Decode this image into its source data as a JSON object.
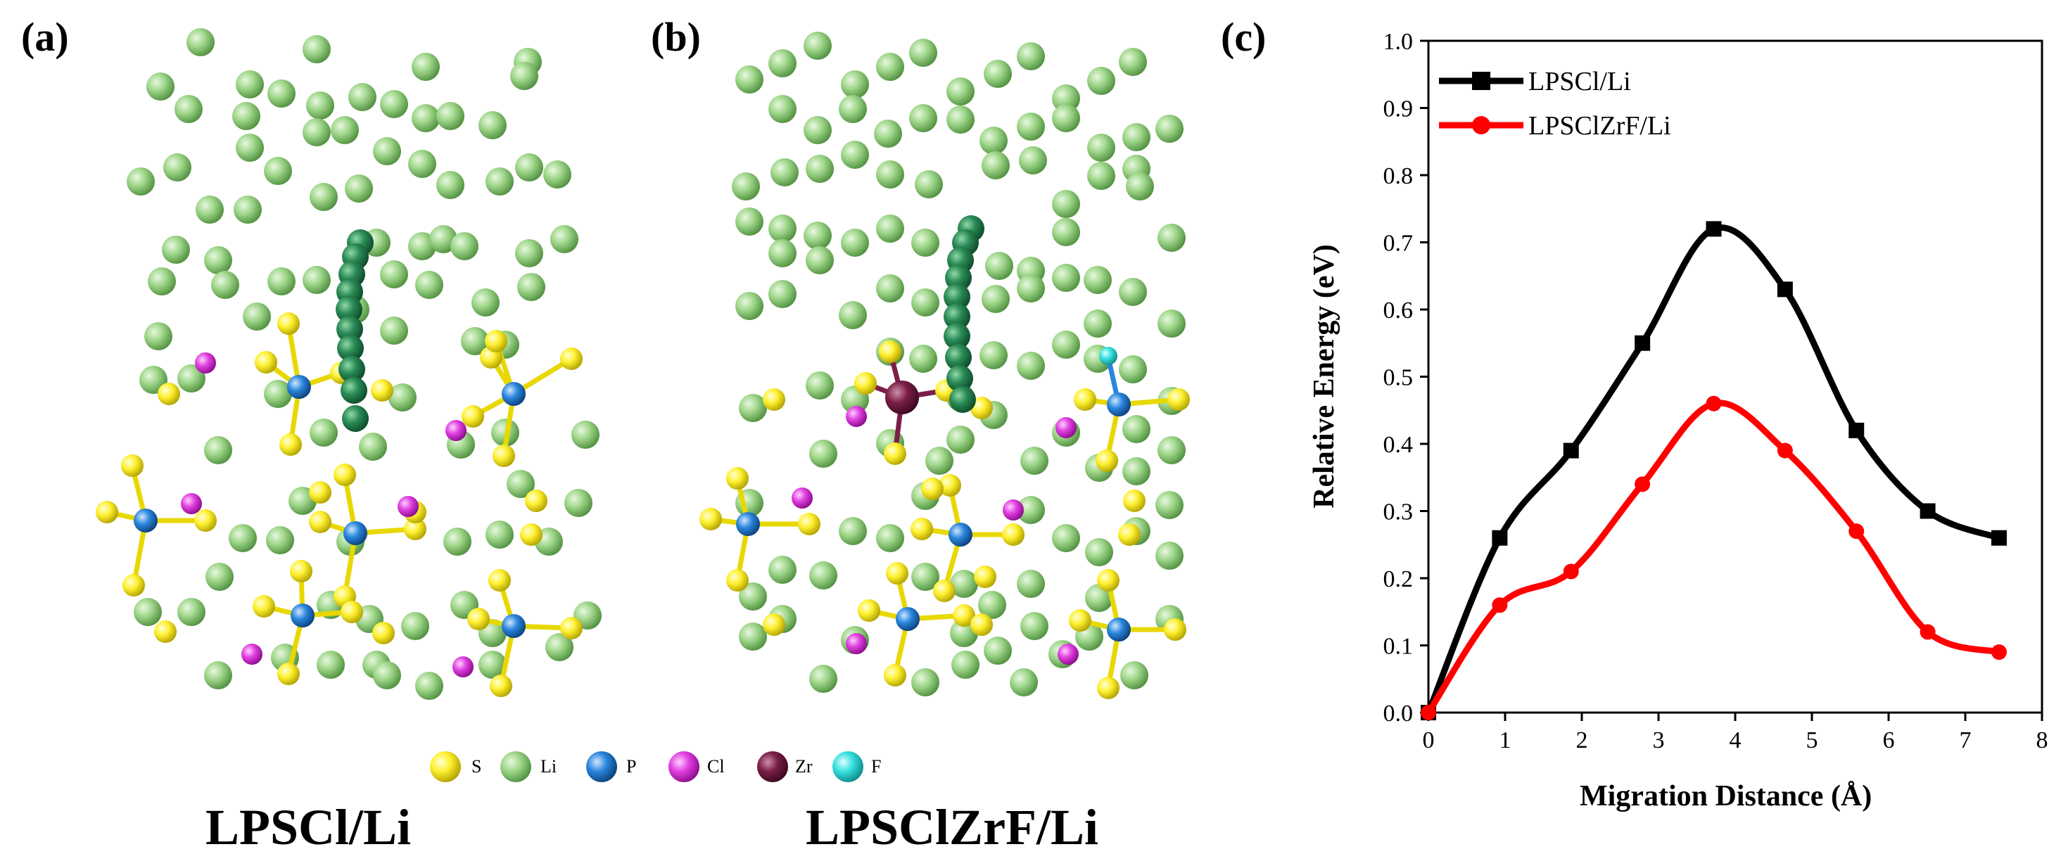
{
  "panels": {
    "a": {
      "label": "(a)",
      "caption": "LPSCl/Li"
    },
    "b": {
      "label": "(b)",
      "caption": "LPSClZrF/Li"
    },
    "c": {
      "label": "(c)"
    }
  },
  "legend": {
    "items": [
      {
        "symbol": "S",
        "color": "#ffee22"
      },
      {
        "symbol": "Li",
        "color": "#8fcf7a"
      },
      {
        "symbol": "P",
        "color": "#2a86dd"
      },
      {
        "symbol": "Cl",
        "color": "#e040e0"
      },
      {
        "symbol": "Zr",
        "color": "#7a1e48"
      },
      {
        "symbol": "F",
        "color": "#35e0e0"
      }
    ]
  },
  "colors": {
    "li": "#8fcf7a",
    "path": "#1f7a4a",
    "s": "#ffee22",
    "p": "#2a86dd",
    "cl": "#e040e0",
    "zr": "#7a1e48",
    "f": "#35e0e0",
    "bond_s": "#e8d800",
    "bond_p": "#2a86dd"
  },
  "chart_data": {
    "type": "line",
    "title": "",
    "xlabel": "Migration Distance (Å)",
    "ylabel": "Relative Energy (eV)",
    "xlim": [
      0,
      8
    ],
    "ylim": [
      0,
      1.0
    ],
    "xticks": [
      0,
      1,
      2,
      3,
      4,
      5,
      6,
      7,
      8
    ],
    "yticks": [
      0.0,
      0.1,
      0.2,
      0.3,
      0.4,
      0.5,
      0.6,
      0.7,
      0.8,
      0.9,
      1.0
    ],
    "legend_position": "top-left",
    "grid": false,
    "series": [
      {
        "name": "LPSCl/Li",
        "color": "#000000",
        "marker": "square",
        "x": [
          0,
          0.93,
          1.86,
          2.79,
          3.72,
          4.65,
          5.58,
          6.51,
          7.44
        ],
        "y": [
          0.0,
          0.26,
          0.39,
          0.55,
          0.72,
          0.63,
          0.42,
          0.3,
          0.26
        ]
      },
      {
        "name": "LPSClZrF/Li",
        "color": "#ff0000",
        "marker": "circle",
        "x": [
          0,
          0.93,
          1.86,
          2.79,
          3.72,
          4.65,
          5.58,
          6.51,
          7.44
        ],
        "y": [
          0.0,
          0.16,
          0.21,
          0.34,
          0.46,
          0.39,
          0.27,
          0.12,
          0.09
        ]
      }
    ]
  }
}
